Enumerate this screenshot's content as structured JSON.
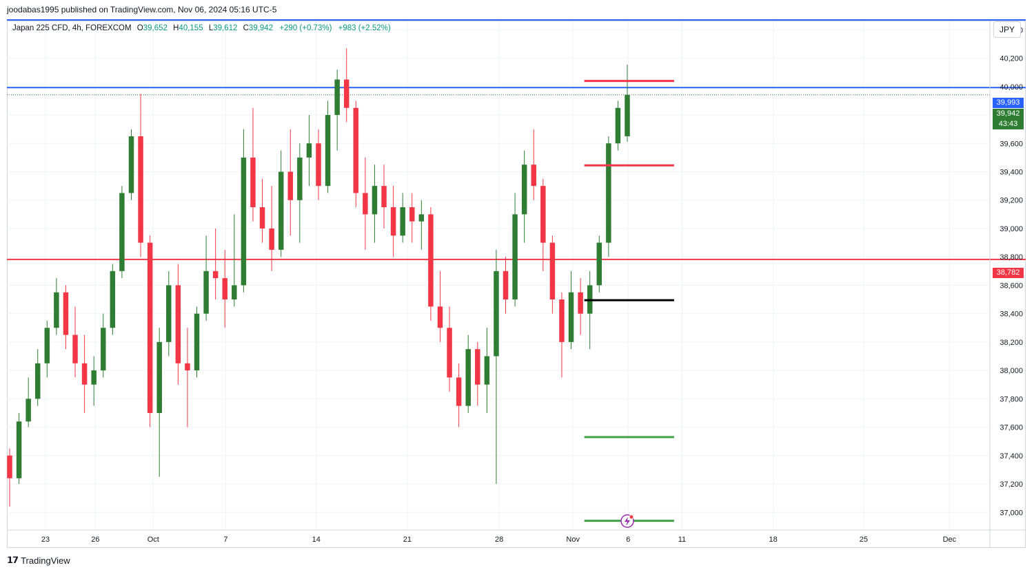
{
  "header": {
    "publish_line": "joodabas1995 published on TradingView.com, Nov 06, 2024 05:16 UTC-5"
  },
  "legend": {
    "symbol": "Japan 225 CFD, 4h, FOREXCOM",
    "open_label": "O",
    "open": "39,652",
    "high_label": "H",
    "high": "40,155",
    "low_label": "L",
    "low": "39,612",
    "close_label": "C",
    "close": "39,942",
    "change": "+290 (+0.73%)",
    "change2": "+983 (+2.52%)"
  },
  "currency_button": "JPY",
  "price_tags": {
    "blue_level": "39,993",
    "last_price": "39,942",
    "countdown": "43:43",
    "red_level": "38,782"
  },
  "footer": {
    "logo_text": "TradingView"
  },
  "colors": {
    "up": "#2e7d32",
    "down": "#f23645",
    "blue_line": "#2962ff",
    "red_line": "#f23645",
    "green_marker": "#43a047",
    "black_marker": "#000000",
    "lightning_icon": "#9c27b0",
    "grid": "#f0f3fa"
  },
  "chart_data": {
    "type": "candlestick",
    "symbol": "Japan 225 CFD",
    "timeframe": "4h",
    "currency": "JPY",
    "y_axis": {
      "ticks": [
        37000,
        37200,
        37400,
        37600,
        37800,
        38000,
        38200,
        38400,
        38600,
        38800,
        39000,
        39200,
        39400,
        39600,
        39800,
        40000,
        40200,
        40400
      ],
      "tick_labels": [
        "37,000",
        "37,200",
        "37,400",
        "37,600",
        "37,800",
        "38,000",
        "38,200",
        "38,400",
        "38,600",
        "38,800",
        "39,000",
        "39,200",
        "39,400",
        "39,600",
        "39,800",
        "40,000",
        "40,200",
        "40,400"
      ],
      "ylim": [
        36880,
        40460
      ]
    },
    "x_axis": {
      "ticks": [
        {
          "label": "23",
          "x": 0.058
        },
        {
          "label": "26",
          "x": 0.133
        },
        {
          "label": "Oct",
          "x": 0.22
        },
        {
          "label": "7",
          "x": 0.329
        },
        {
          "label": "14",
          "x": 0.465
        },
        {
          "label": "21",
          "x": 0.602
        },
        {
          "label": "28",
          "x": 0.74
        },
        {
          "label": "Nov",
          "x": 0.851
        },
        {
          "label": "6",
          "x": 0.934
        },
        {
          "label": "11",
          "x": 1.015
        },
        {
          "label": "18",
          "x": 1.152
        },
        {
          "label": "25",
          "x": 1.288
        },
        {
          "label": "Dec",
          "x": 1.417
        }
      ]
    },
    "horizontal_lines": [
      {
        "price": 40470,
        "color": "#2962ff",
        "full_width": true
      },
      {
        "price": 39993,
        "color": "#2962ff",
        "full_width": true
      },
      {
        "price": 38782,
        "color": "#f23645",
        "full_width": true
      }
    ],
    "markers": [
      {
        "price": 40040,
        "color": "#f23645",
        "x_start": 0.868,
        "x_end": 1.003
      },
      {
        "price": 39445,
        "color": "#f23645",
        "x_start": 0.868,
        "x_end": 1.003
      },
      {
        "price": 38495,
        "color": "#000000",
        "x_start": 0.868,
        "x_end": 1.003
      },
      {
        "price": 37530,
        "color": "#43a047",
        "x_start": 0.868,
        "x_end": 1.003
      },
      {
        "price": 36940,
        "color": "#43a047",
        "x_start": 0.868,
        "x_end": 1.003
      }
    ],
    "candles": [
      [
        37400,
        37450,
        37040,
        37240
      ],
      [
        37240,
        37700,
        37200,
        37640
      ],
      [
        37640,
        37950,
        37600,
        37800
      ],
      [
        37800,
        38150,
        37750,
        38050
      ],
      [
        38050,
        38350,
        37950,
        38300
      ],
      [
        38300,
        38650,
        38250,
        38550
      ],
      [
        38550,
        38600,
        38150,
        38250
      ],
      [
        38250,
        38450,
        37950,
        38050
      ],
      [
        38050,
        38250,
        37700,
        37900
      ],
      [
        37900,
        38100,
        37750,
        38000
      ],
      [
        38000,
        38400,
        37950,
        38300
      ],
      [
        38300,
        38750,
        38250,
        38700
      ],
      [
        38700,
        39300,
        38650,
        39250
      ],
      [
        39250,
        39700,
        39200,
        39650
      ],
      [
        39650,
        39950,
        38800,
        38900
      ],
      [
        38900,
        38950,
        37600,
        37700
      ],
      [
        37700,
        38300,
        37250,
        38200
      ],
      [
        38200,
        38700,
        38100,
        38600
      ],
      [
        38600,
        38750,
        37900,
        38050
      ],
      [
        38050,
        38300,
        37600,
        38000
      ],
      [
        38000,
        38450,
        37950,
        38400
      ],
      [
        38400,
        38950,
        38350,
        38700
      ],
      [
        38700,
        39000,
        38500,
        38650
      ],
      [
        38650,
        38850,
        38300,
        38500
      ],
      [
        38500,
        39100,
        38450,
        38600
      ],
      [
        38600,
        39700,
        38550,
        39500
      ],
      [
        39500,
        39850,
        39050,
        39150
      ],
      [
        39150,
        39350,
        38900,
        39000
      ],
      [
        39000,
        39300,
        38700,
        38850
      ],
      [
        38850,
        39550,
        38800,
        39400
      ],
      [
        39400,
        39700,
        38950,
        39200
      ],
      [
        39200,
        39600,
        38900,
        39500
      ],
      [
        39500,
        39800,
        39300,
        39600
      ],
      [
        39600,
        39700,
        39200,
        39300
      ],
      [
        39300,
        39900,
        39250,
        39800
      ],
      [
        39800,
        40120,
        39550,
        40050
      ],
      [
        40050,
        40270,
        39750,
        39850
      ],
      [
        39850,
        39900,
        39150,
        39250
      ],
      [
        39250,
        39500,
        38850,
        39100
      ],
      [
        39100,
        39450,
        38900,
        39300
      ],
      [
        39300,
        39450,
        39000,
        39150
      ],
      [
        39150,
        39300,
        38800,
        38950
      ],
      [
        38950,
        39250,
        38900,
        39150
      ],
      [
        39150,
        39250,
        38900,
        39050
      ],
      [
        39050,
        39200,
        38850,
        39100
      ],
      [
        39100,
        39150,
        38350,
        38450
      ],
      [
        38450,
        38700,
        38200,
        38300
      ],
      [
        38300,
        38450,
        37850,
        37950
      ],
      [
        37950,
        38050,
        37600,
        37750
      ],
      [
        37750,
        38250,
        37700,
        38150
      ],
      [
        38150,
        38200,
        37750,
        37900
      ],
      [
        37900,
        38300,
        37700,
        38100
      ],
      [
        38100,
        38850,
        37200,
        38700
      ],
      [
        38700,
        38800,
        38400,
        38500
      ],
      [
        38500,
        39250,
        38450,
        39100
      ],
      [
        39100,
        39550,
        38900,
        39450
      ],
      [
        39450,
        39700,
        39200,
        39300
      ],
      [
        39300,
        39350,
        38700,
        38900
      ],
      [
        38900,
        38950,
        38400,
        38500
      ],
      [
        38500,
        38550,
        37950,
        38200
      ],
      [
        38200,
        38700,
        38150,
        38550
      ],
      [
        38550,
        38650,
        38250,
        38400
      ],
      [
        38400,
        38700,
        38150,
        38600
      ],
      [
        38600,
        38950,
        38550,
        38900
      ],
      [
        38900,
        39650,
        38800,
        39600
      ],
      [
        39600,
        39900,
        39550,
        39850
      ],
      [
        39650,
        40155,
        39612,
        39942
      ]
    ]
  }
}
